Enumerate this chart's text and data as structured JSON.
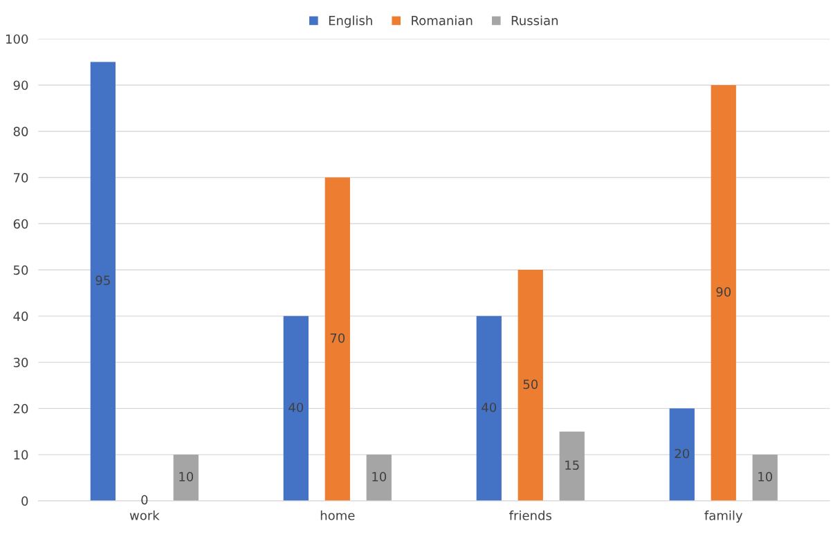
{
  "chart_data": {
    "type": "bar",
    "categories": [
      "work",
      "home",
      "friends",
      "family"
    ],
    "series": [
      {
        "name": "English",
        "color": "#4472c4",
        "values": [
          95,
          40,
          40,
          20
        ]
      },
      {
        "name": "Romanian",
        "color": "#ed7d31",
        "values": [
          0,
          70,
          50,
          90
        ]
      },
      {
        "name": "Russian",
        "color": "#a5a5a5",
        "values": [
          10,
          10,
          15,
          10
        ]
      }
    ],
    "ylim": [
      0,
      100
    ],
    "yticks": [
      0,
      10,
      20,
      30,
      40,
      50,
      60,
      70,
      80,
      90,
      100
    ],
    "grid": "y",
    "legend": "top",
    "data_labels": true
  }
}
